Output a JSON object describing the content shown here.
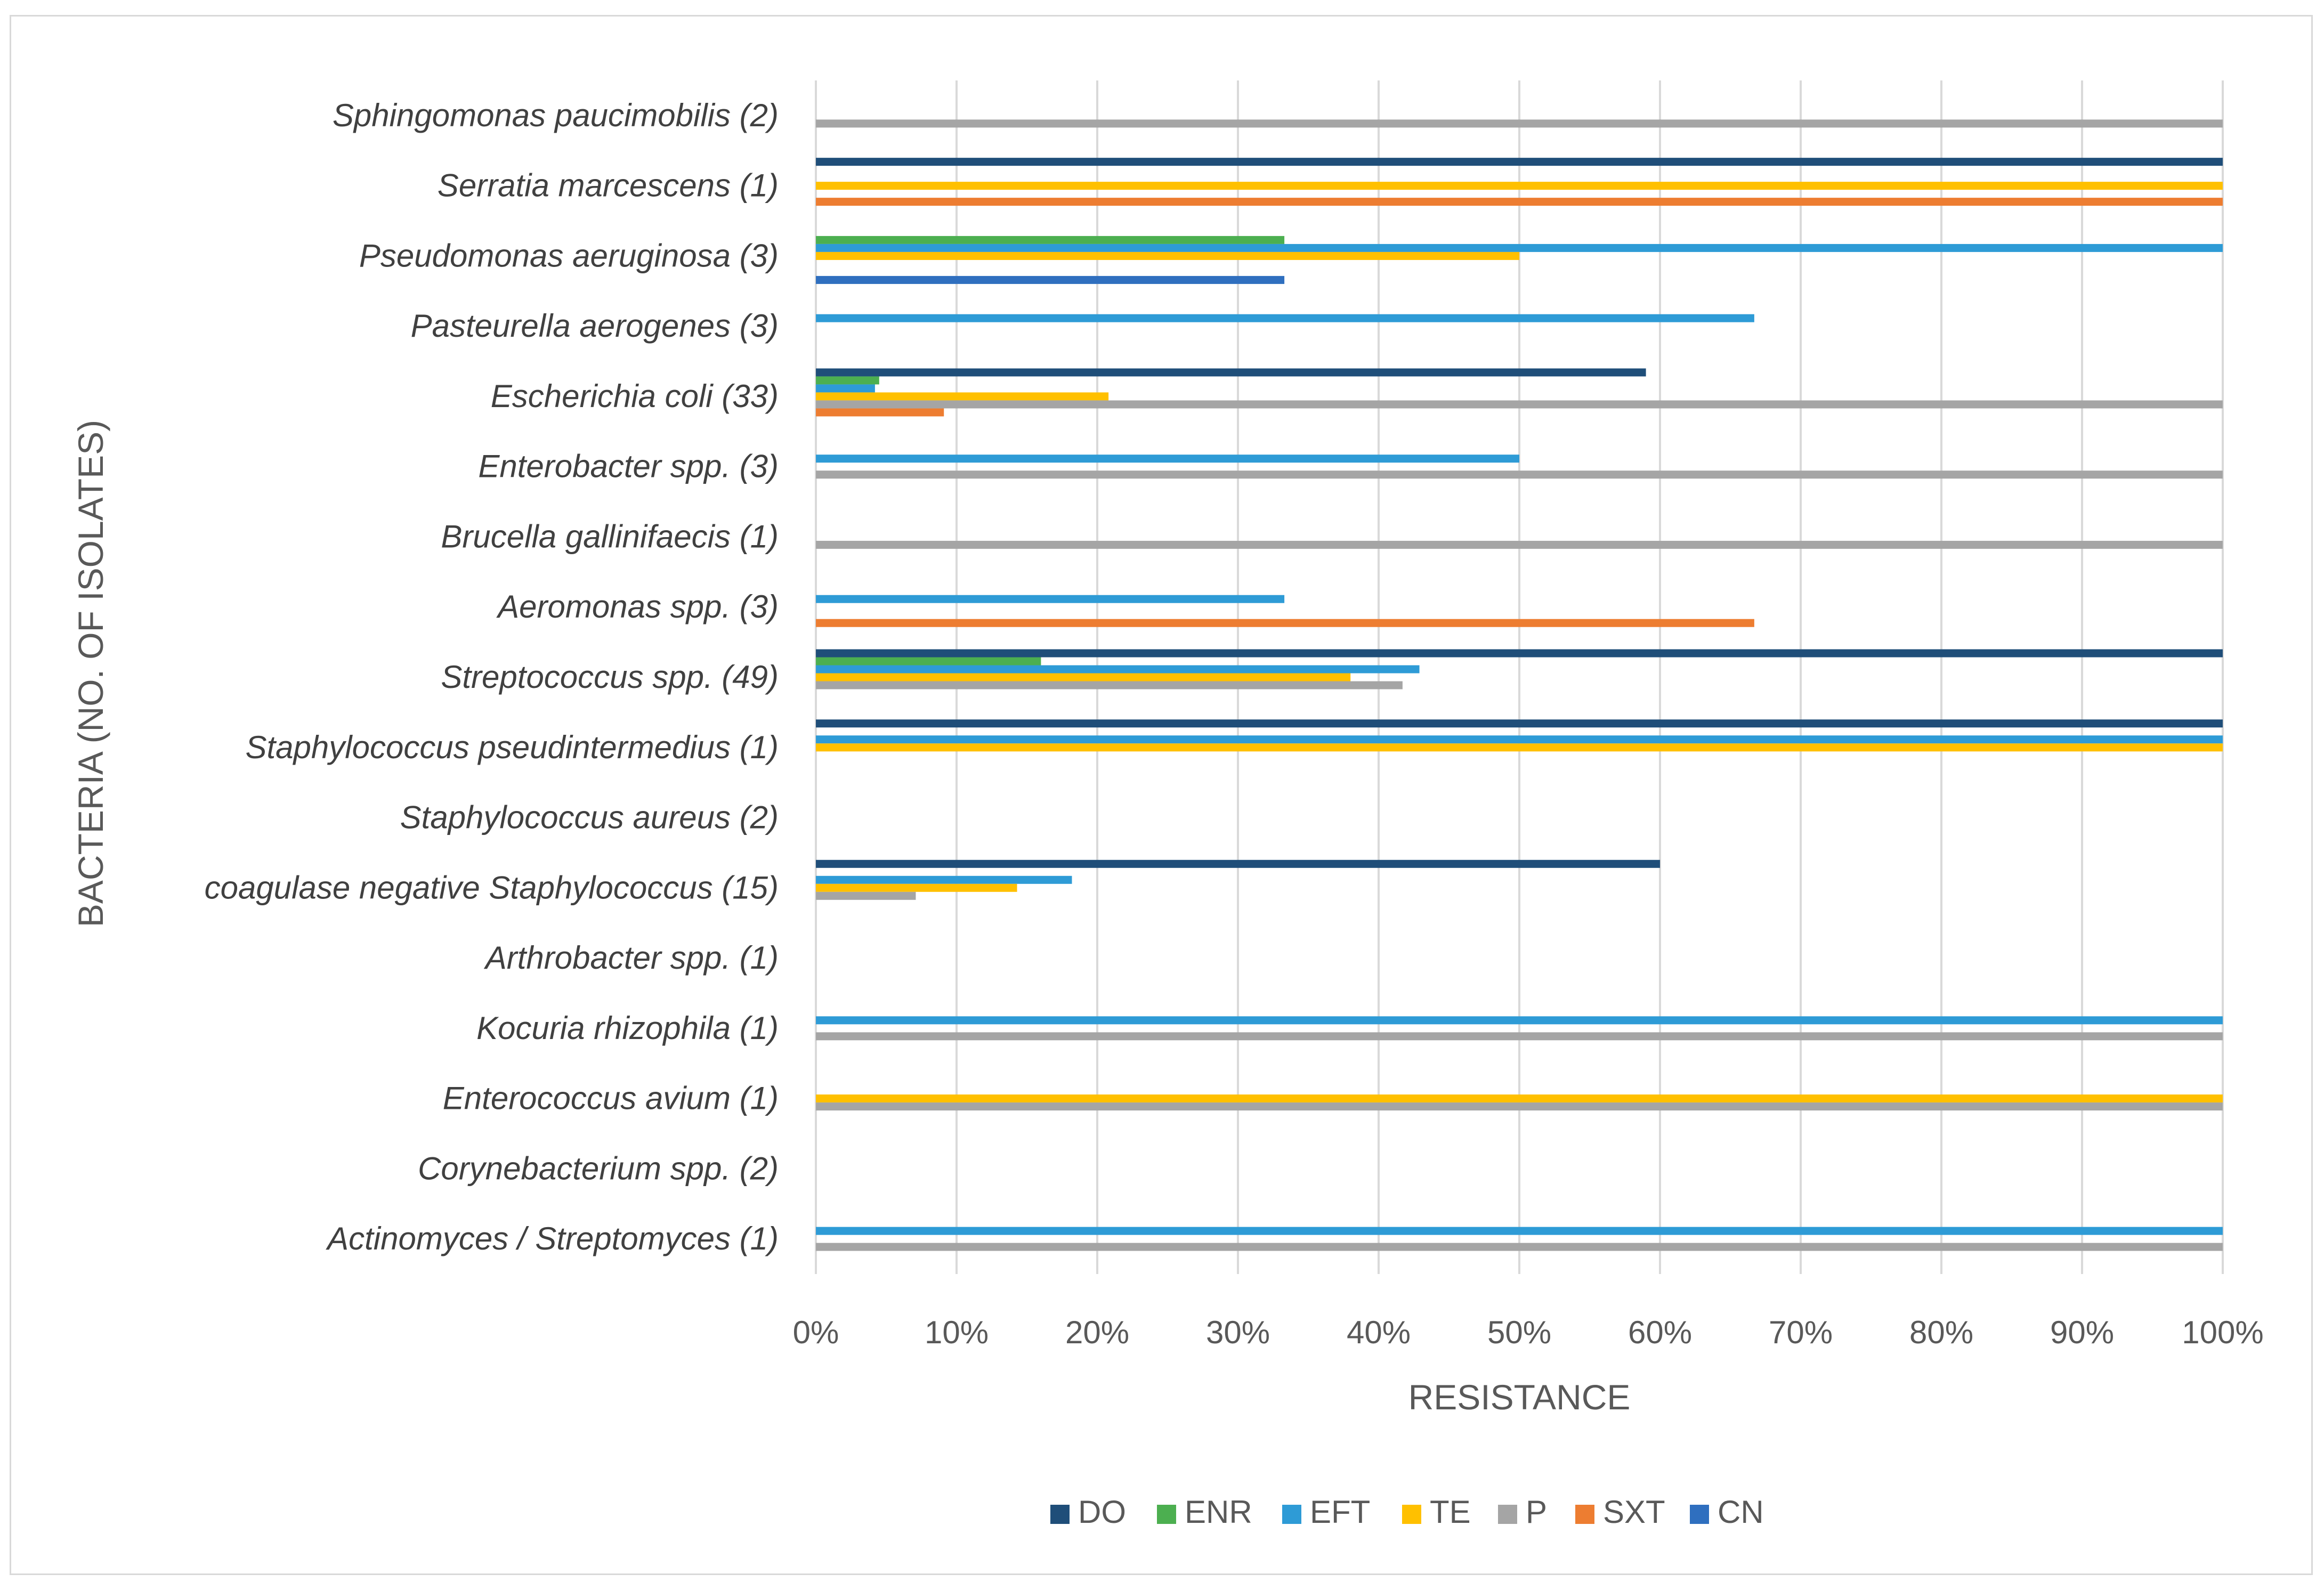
{
  "chart_data": {
    "type": "bar",
    "orientation": "horizontal",
    "title": "",
    "xlabel": "RESISTANCE",
    "ylabel": "BACTERIA (NO. OF ISOLATES)",
    "xlim": [
      0,
      100
    ],
    "x_ticks": [
      "0%",
      "10%",
      "20%",
      "30%",
      "40%",
      "50%",
      "60%",
      "70%",
      "80%",
      "90%",
      "100%"
    ],
    "grid": true,
    "legend_position": "bottom",
    "categories": [
      "Sphingomonas paucimobilis (2)",
      "Serratia marcescens (1)",
      "Pseudomonas aeruginosa (3)",
      "Pasteurella aerogenes (3)",
      "Escherichia coli (33)",
      "Enterobacter spp. (3)",
      "Brucella gallinifaecis (1)",
      "Aeromonas spp. (3)",
      "Streptococcus spp. (49)",
      "Staphylococcus pseudintermedius (1)",
      "Staphylococcus aureus (2)",
      "coagulase negative Staphylococcus (15)",
      "Arthrobacter spp. (1)",
      "Kocuria rhizophila (1)",
      "Enterococcus avium (1)",
      "Corynebacterium spp. (2)",
      "Actinomyces / Streptomyces (1)"
    ],
    "series": [
      {
        "name": "DO",
        "color": "#1f4e79",
        "values": [
          0,
          100,
          0,
          0,
          59,
          0,
          0,
          0,
          100,
          100,
          0,
          60,
          0,
          0,
          0,
          0,
          0
        ]
      },
      {
        "name": "ENR",
        "color": "#4caf50",
        "values": [
          0,
          0,
          33.3,
          0,
          4.5,
          0,
          0,
          0,
          16,
          0,
          0,
          0,
          0,
          0,
          0,
          0,
          0
        ]
      },
      {
        "name": "EFT",
        "color": "#2e9bd6",
        "values": [
          0,
          0,
          100,
          66.7,
          4.2,
          50,
          0,
          33.3,
          42.9,
          100,
          0,
          18.2,
          0,
          100,
          0,
          0,
          100
        ]
      },
      {
        "name": "TE",
        "color": "#ffc000",
        "values": [
          0,
          100,
          50,
          0,
          20.8,
          0,
          0,
          0,
          38,
          100,
          0,
          14.3,
          0,
          0,
          100,
          0,
          0
        ]
      },
      {
        "name": "P",
        "color": "#a5a5a5",
        "values": [
          100,
          0,
          0,
          0,
          100,
          100,
          100,
          0,
          41.7,
          0,
          0,
          7.1,
          0,
          100,
          100,
          0,
          100
        ]
      },
      {
        "name": "SXT",
        "color": "#ed7d31",
        "values": [
          0,
          100,
          0,
          0,
          9.1,
          0,
          0,
          66.7,
          0,
          0,
          0,
          0,
          0,
          0,
          0,
          0,
          0
        ]
      },
      {
        "name": "CN",
        "color": "#2f6fbf",
        "values": [
          0,
          0,
          33.3,
          0,
          0,
          0,
          0,
          0,
          0,
          0,
          0,
          0,
          0,
          0,
          0,
          0,
          0
        ]
      }
    ]
  }
}
